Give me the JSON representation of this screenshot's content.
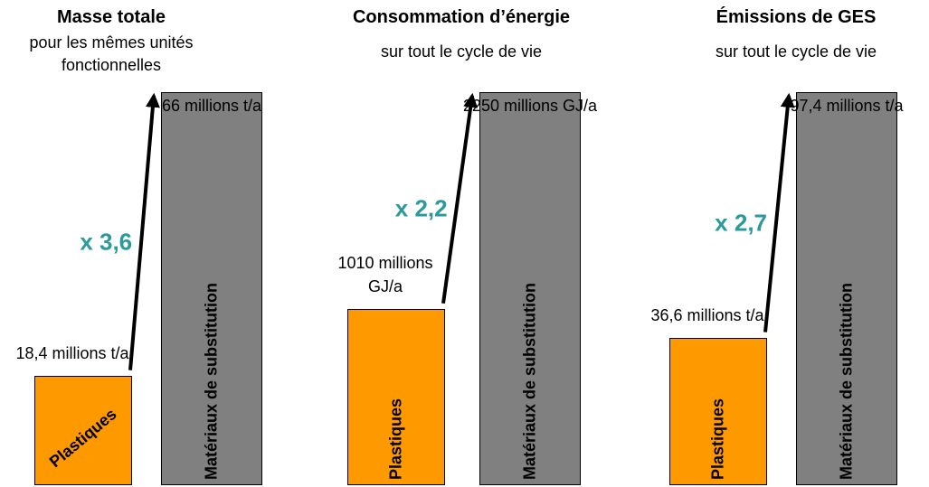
{
  "chart_data": [
    {
      "type": "bar",
      "title": "Masse totale",
      "subtitle": "pour les mêmes unités fonctionnelles",
      "categories": [
        "Plastiques",
        "Matériaux de substitution"
      ],
      "values": [
        18.4,
        66
      ],
      "value_labels": [
        "18,4 millions t/a",
        "66 millions t/a"
      ],
      "colors": [
        "#ff9900",
        "#808080"
      ],
      "annotation": "x 3,6"
    },
    {
      "type": "bar",
      "title": "Consommation d’énergie",
      "subtitle": "sur tout le cycle de vie",
      "categories": [
        "Plastiques",
        "Matériaux de substitution"
      ],
      "values": [
        1010,
        2250
      ],
      "value_labels": [
        "1010 millions GJ/a",
        "2250 millions GJ/a"
      ],
      "colors": [
        "#ff9900",
        "#808080"
      ],
      "annotation": "x 2,2"
    },
    {
      "type": "bar",
      "title": "Émissions de GES",
      "subtitle": "sur tout le cycle de vie",
      "categories": [
        "Plastiques",
        "Matériaux de substitution"
      ],
      "values": [
        36.6,
        97.4
      ],
      "value_labels": [
        "36,6 millions t/a",
        "97,4 millions t/a"
      ],
      "colors": [
        "#ff9900",
        "#808080"
      ],
      "annotation": "x 2,7"
    }
  ]
}
